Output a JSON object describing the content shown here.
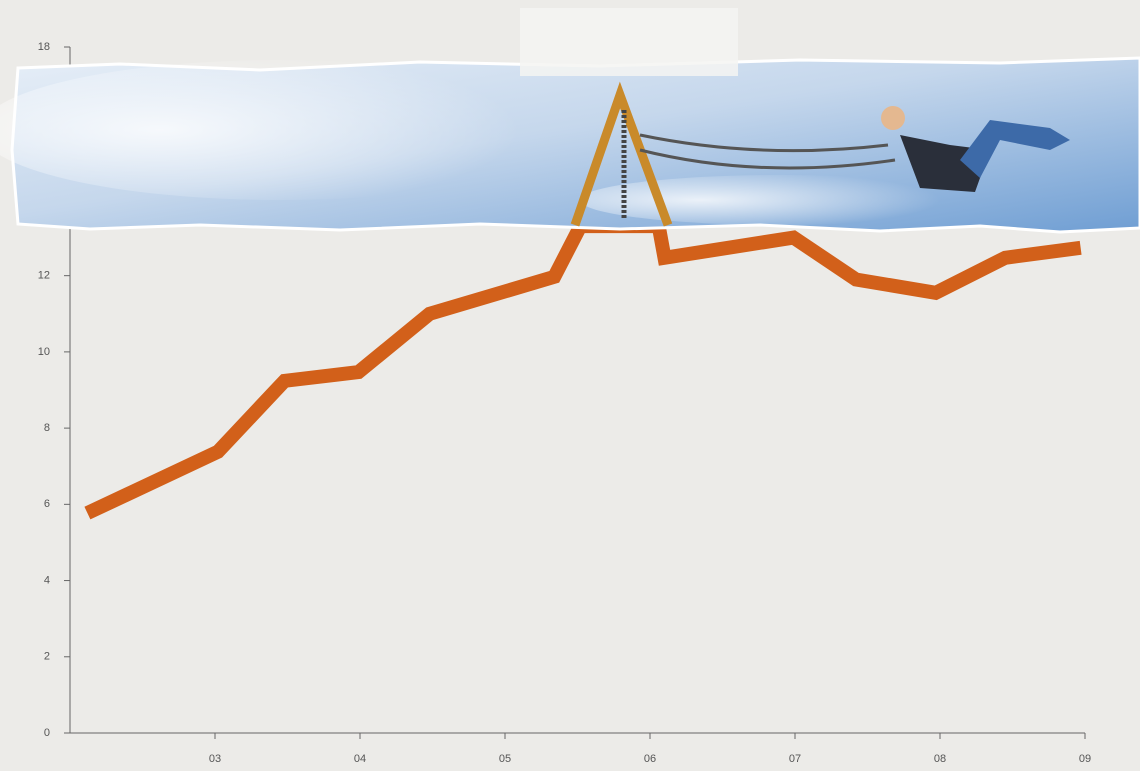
{
  "chart_data": {
    "type": "line",
    "x": [
      2.12,
      3.02,
      3.48,
      3.99,
      4.48,
      5.34,
      5.52,
      6.06,
      6.1,
      6.99,
      7.42,
      7.97,
      8.45,
      8.97
    ],
    "series": [
      {
        "color": "#d2601a",
        "values": [
          5.77,
          7.38,
          9.24,
          9.47,
          11.0,
          11.97,
          13.3,
          13.3,
          12.47,
          13.0,
          11.9,
          11.55,
          12.47,
          12.73
        ]
      }
    ],
    "xlim": [
      2,
      9
    ],
    "xticks": [
      {
        "value": 3,
        "label": "03"
      },
      {
        "value": 4,
        "label": "04"
      },
      {
        "value": 5,
        "label": "05"
      },
      {
        "value": 6,
        "label": "06"
      },
      {
        "value": 7,
        "label": "07"
      },
      {
        "value": 8,
        "label": "08"
      },
      {
        "value": 9,
        "label": "09"
      }
    ],
    "ylim": [
      0,
      18
    ],
    "yticks": [
      0,
      2,
      4,
      6,
      8,
      10,
      12,
      18
    ],
    "grid": false
  }
}
